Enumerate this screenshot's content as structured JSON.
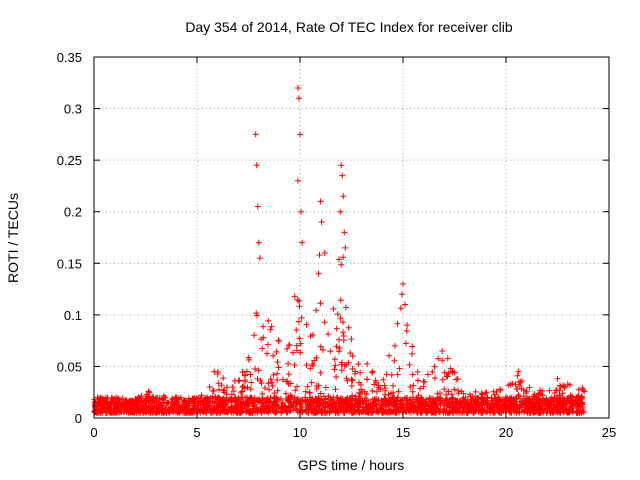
{
  "chart_data": {
    "type": "scatter",
    "title": "Day 354 of 2014, Rate Of TEC Index for receiver clib",
    "xlabel": "GPS time / hours",
    "ylabel": "ROTI / TECUs",
    "xlim": [
      0,
      25
    ],
    "ylim": [
      0,
      0.35
    ],
    "xticks": [
      0,
      5,
      10,
      15,
      20,
      25
    ],
    "yticks": [
      0,
      0.05,
      0.1,
      0.15,
      0.2,
      0.25,
      0.3,
      0.35
    ],
    "xtick_labels": [
      "0",
      "5",
      "10",
      "15",
      "20",
      "25"
    ],
    "ytick_labels": [
      "0",
      "0.05",
      "0.1",
      "0.15",
      "0.2",
      "0.25",
      "0.3",
      "0.35"
    ],
    "grid": true,
    "marker": "+",
    "color": "#ff0000",
    "series": [
      {
        "name": "ROTI",
        "background_band": {
          "x_range": [
            0,
            23.8
          ],
          "base_min": 0.005,
          "base_max": 0.02
        },
        "envelope": [
          [
            0.0,
            0.02
          ],
          [
            0.3,
            0.015
          ],
          [
            1.0,
            0.015
          ],
          [
            2.0,
            0.02
          ],
          [
            3.0,
            0.03
          ],
          [
            3.5,
            0.02
          ],
          [
            5.0,
            0.02
          ],
          [
            6.0,
            0.05
          ],
          [
            6.5,
            0.03
          ],
          [
            7.5,
            0.06
          ],
          [
            8.0,
            0.12
          ],
          [
            8.5,
            0.1
          ],
          [
            9.0,
            0.08
          ],
          [
            10.0,
            0.15
          ],
          [
            10.5,
            0.08
          ],
          [
            11.0,
            0.17
          ],
          [
            11.5,
            0.09
          ],
          [
            12.0,
            0.18
          ],
          [
            12.5,
            0.08
          ],
          [
            13.0,
            0.06
          ],
          [
            14.0,
            0.04
          ],
          [
            15.0,
            0.12
          ],
          [
            15.5,
            0.07
          ],
          [
            16.0,
            0.04
          ],
          [
            17.0,
            0.065
          ],
          [
            18.0,
            0.03
          ],
          [
            19.0,
            0.025
          ],
          [
            20.0,
            0.03
          ],
          [
            20.5,
            0.045
          ],
          [
            21.0,
            0.03
          ],
          [
            22.0,
            0.035
          ],
          [
            23.0,
            0.035
          ],
          [
            23.8,
            0.03
          ]
        ],
        "peaks": [
          [
            7.85,
            0.275
          ],
          [
            7.9,
            0.245
          ],
          [
            7.95,
            0.205
          ],
          [
            8.0,
            0.17
          ],
          [
            8.05,
            0.155
          ],
          [
            9.9,
            0.32
          ],
          [
            9.95,
            0.31
          ],
          [
            10.0,
            0.275
          ],
          [
            9.9,
            0.23
          ],
          [
            10.05,
            0.2
          ],
          [
            10.1,
            0.17
          ],
          [
            11.0,
            0.21
          ],
          [
            11.05,
            0.19
          ],
          [
            11.2,
            0.16
          ],
          [
            10.9,
            0.14
          ],
          [
            12.0,
            0.245
          ],
          [
            12.05,
            0.235
          ],
          [
            12.1,
            0.215
          ],
          [
            11.95,
            0.2
          ],
          [
            12.15,
            0.18
          ],
          [
            12.2,
            0.165
          ],
          [
            15.0,
            0.13
          ],
          [
            14.95,
            0.12
          ],
          [
            15.1,
            0.11
          ],
          [
            15.2,
            0.09
          ],
          [
            16.9,
            0.065
          ],
          [
            20.6,
            0.045
          ],
          [
            22.5,
            0.038
          ]
        ]
      }
    ]
  }
}
